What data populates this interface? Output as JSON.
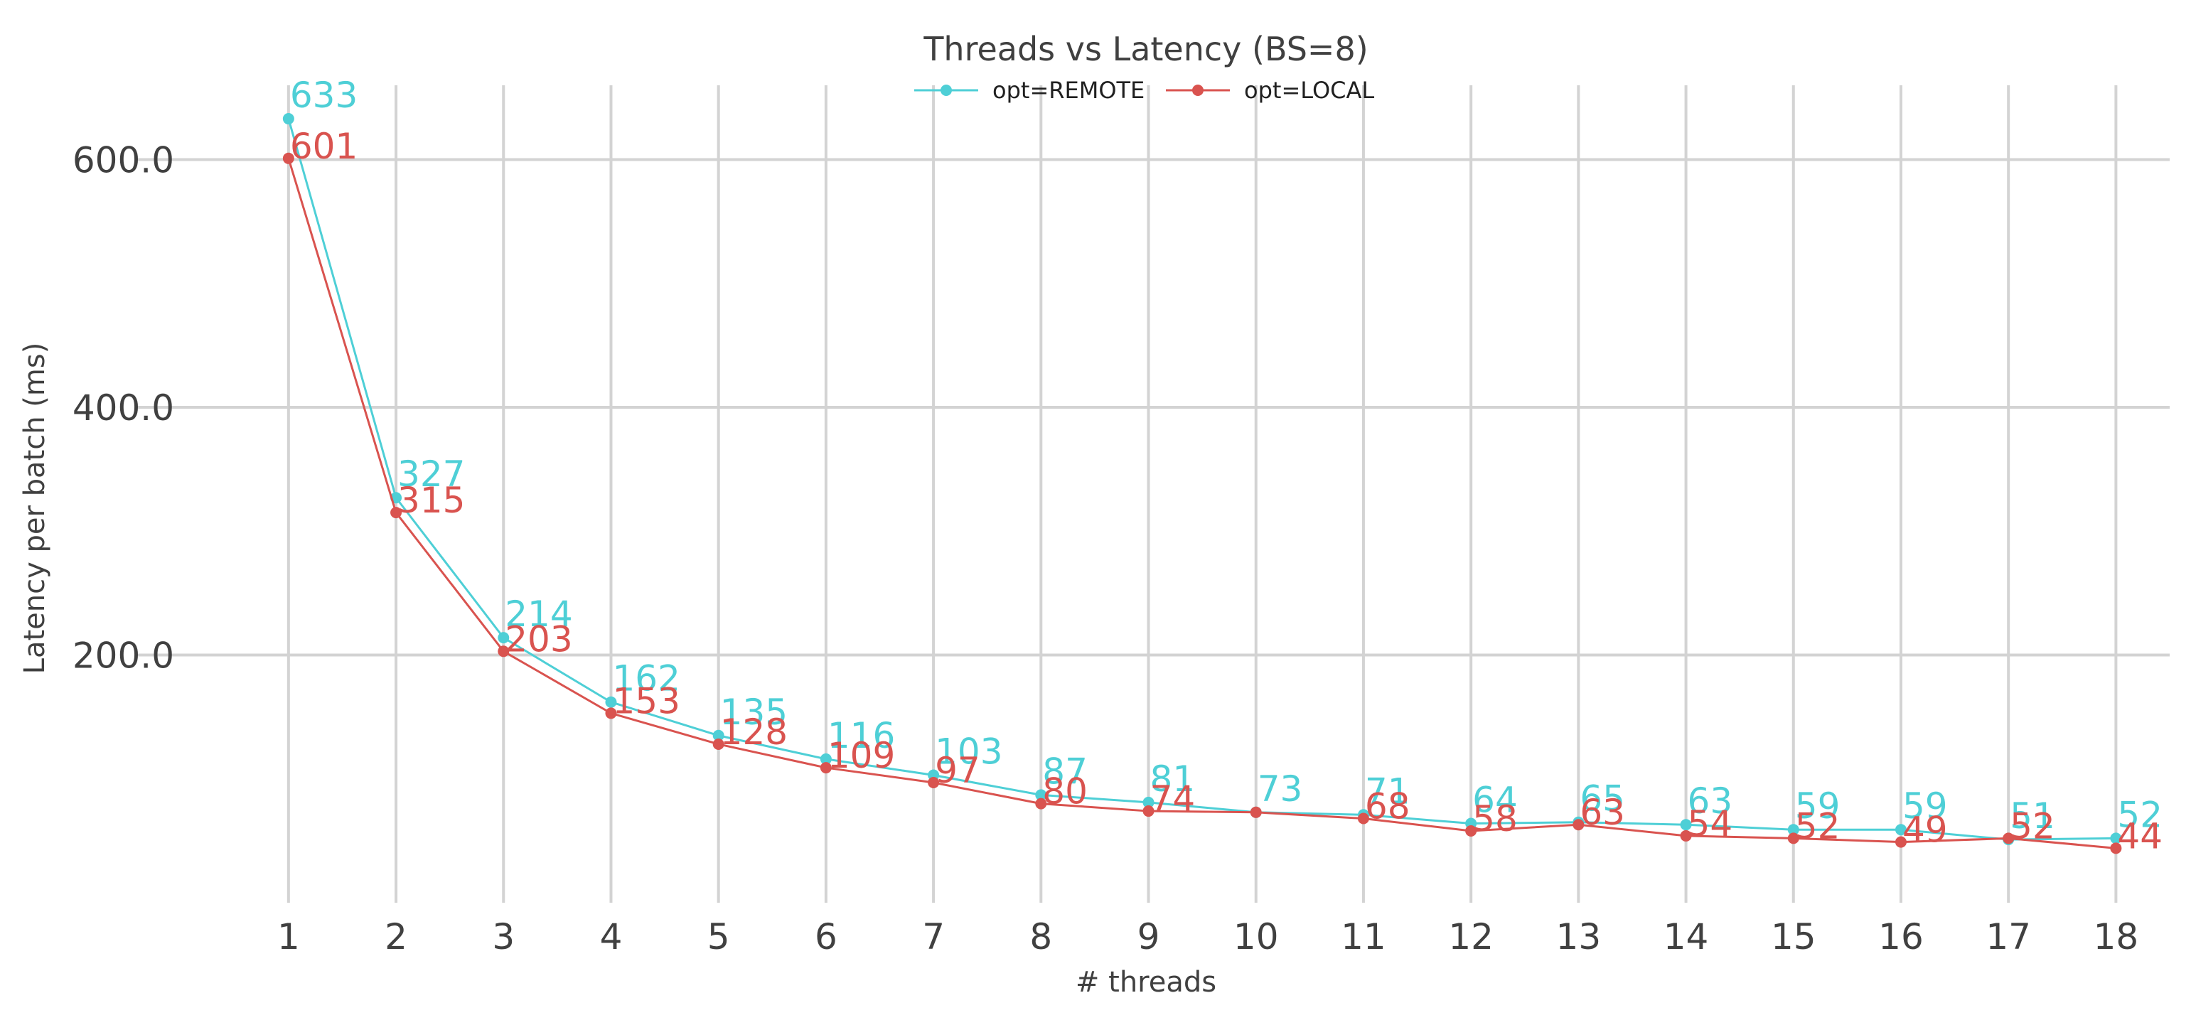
{
  "chart_data": {
    "type": "line",
    "title": "Threads vs Latency (BS=8)",
    "xlabel": "# threads",
    "ylabel": "Latency per batch (ms)",
    "x": [
      1,
      2,
      3,
      4,
      5,
      6,
      7,
      8,
      9,
      10,
      11,
      12,
      13,
      14,
      15,
      16,
      17,
      18
    ],
    "x_tick_labels": [
      "1",
      "2",
      "3",
      "4",
      "5",
      "6",
      "7",
      "8",
      "9",
      "10",
      "11",
      "12",
      "13",
      "14",
      "15",
      "16",
      "17",
      "18"
    ],
    "y_ticks": [
      200.0,
      400.0,
      600.0
    ],
    "y_tick_labels": [
      "200.0",
      "400.0",
      "600.0"
    ],
    "ylim": [
      0,
      660
    ],
    "xlim": [
      0.3,
      18.5
    ],
    "grid": true,
    "legend_position": "top-center",
    "series": [
      {
        "name": "opt=REMOTE",
        "color": "#4ecfd6",
        "values": [
          633,
          327,
          214,
          162,
          135,
          116,
          103,
          87,
          81,
          73,
          71,
          64,
          65,
          63,
          59,
          59,
          51,
          52
        ],
        "labels": [
          "633",
          "327",
          "214",
          "162",
          "135",
          "116",
          "103",
          "87",
          "81",
          "73",
          "71",
          "64",
          "65",
          "63",
          "59",
          "59",
          "51",
          "52"
        ]
      },
      {
        "name": "opt=LOCAL",
        "color": "#d9534f",
        "values": [
          601,
          315,
          203,
          153,
          128,
          109,
          97,
          80,
          74,
          73,
          68,
          58,
          63,
          54,
          52,
          49,
          52,
          44
        ],
        "labels": [
          "601",
          "315",
          "203",
          "153",
          "128",
          "109",
          "97",
          "80",
          "74",
          "",
          "68",
          "58",
          "63",
          "54",
          "52",
          "49",
          "52",
          "44"
        ]
      }
    ]
  }
}
